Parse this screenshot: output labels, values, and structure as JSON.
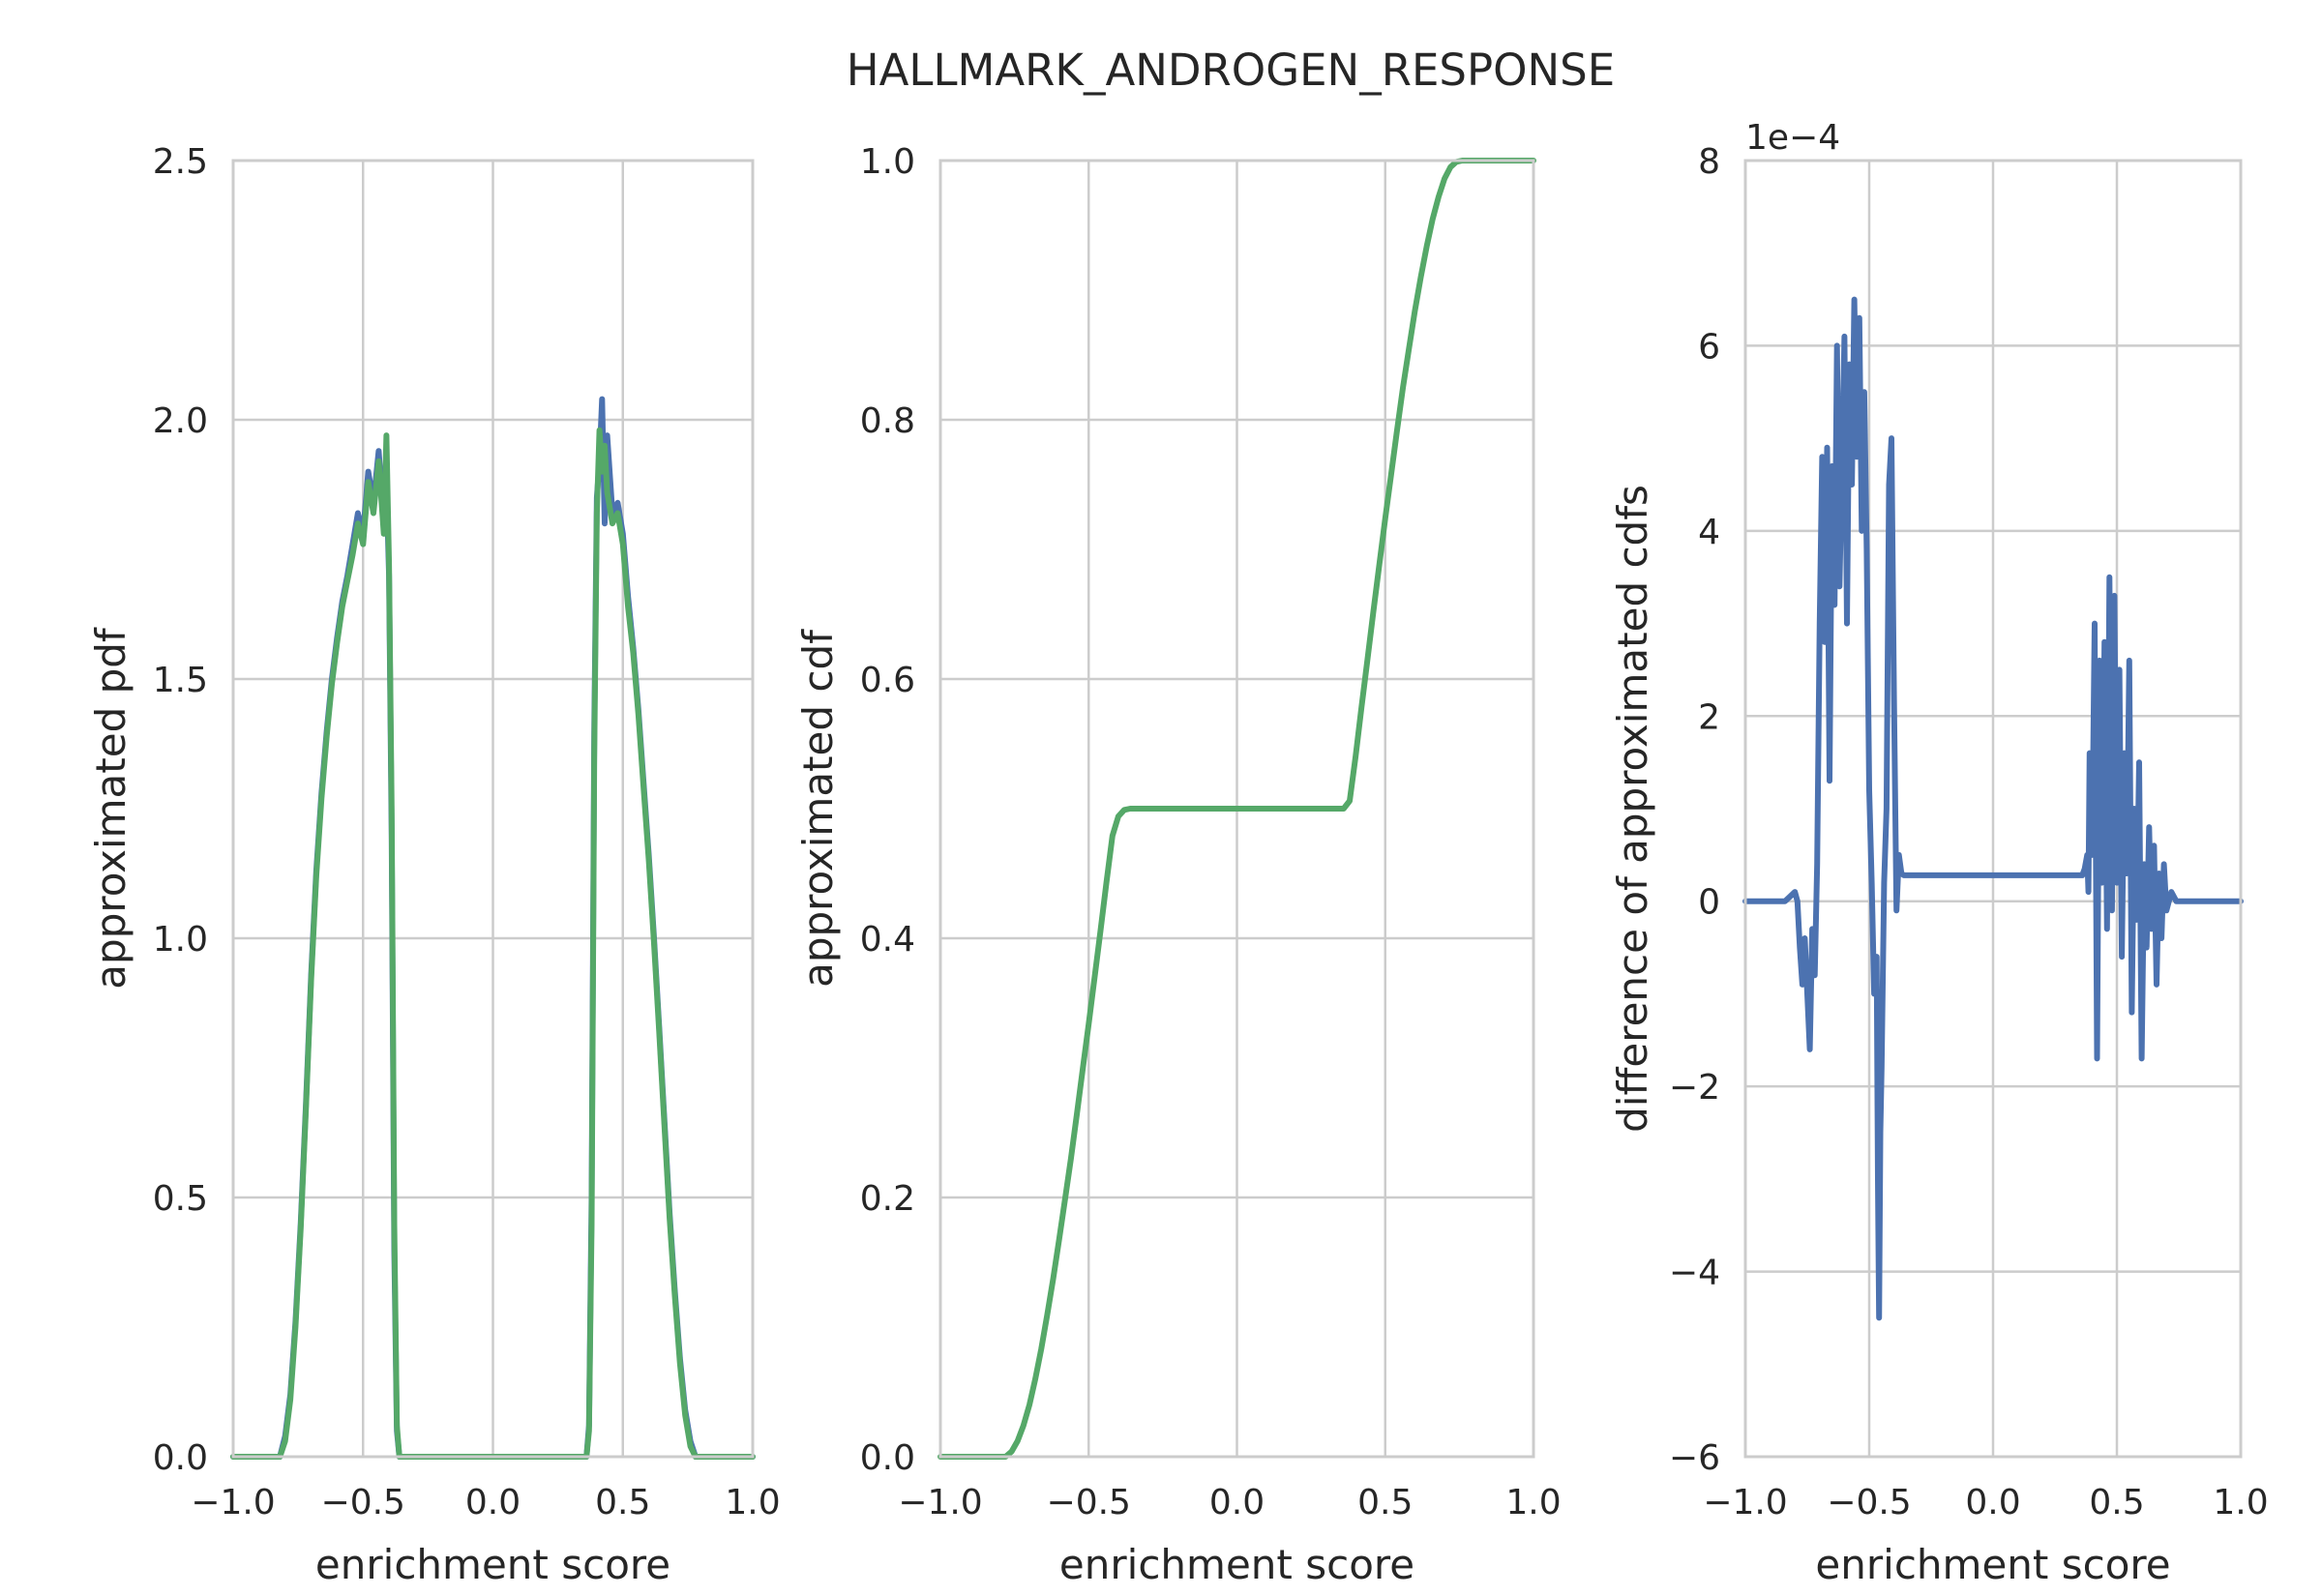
{
  "figure": {
    "title": "HALLMARK_ANDROGEN_RESPONSE"
  },
  "colors": {
    "blue": "#4C72B0",
    "green": "#55A868",
    "grid": "#CCCCCC",
    "text": "#262626"
  },
  "chart_data": [
    {
      "type": "line",
      "xlabel": "enrichment score",
      "ylabel": "approximated pdf",
      "xlim": [
        -1.0,
        1.0
      ],
      "ylim": [
        0.0,
        2.5
      ],
      "xticks": [
        "−1.0",
        "−0.5",
        "0.0",
        "0.5",
        "1.0"
      ],
      "yticks": [
        "0.0",
        "0.5",
        "1.0",
        "1.5",
        "2.0",
        "2.5"
      ],
      "grid": true,
      "series": [
        {
          "color": "#4C72B0",
          "x": [
            -1.0,
            -0.82,
            -0.8,
            -0.78,
            -0.76,
            -0.74,
            -0.72,
            -0.7,
            -0.68,
            -0.66,
            -0.64,
            -0.62,
            -0.6,
            -0.58,
            -0.56,
            -0.54,
            -0.52,
            -0.5,
            -0.48,
            -0.46,
            -0.44,
            -0.42,
            -0.41,
            -0.4,
            -0.39,
            -0.38,
            -0.37,
            -0.36,
            0.36,
            0.37,
            0.38,
            0.39,
            0.4,
            0.41,
            0.42,
            0.43,
            0.44,
            0.46,
            0.48,
            0.5,
            0.52,
            0.54,
            0.56,
            0.58,
            0.6,
            0.62,
            0.64,
            0.66,
            0.68,
            0.7,
            0.72,
            0.74,
            0.76,
            0.78,
            0.8,
            0.82,
            1.0
          ],
          "y": [
            0.0,
            0.0,
            0.04,
            0.12,
            0.26,
            0.45,
            0.68,
            0.93,
            1.13,
            1.28,
            1.4,
            1.5,
            1.58,
            1.65,
            1.7,
            1.76,
            1.82,
            1.78,
            1.9,
            1.84,
            1.94,
            1.8,
            1.88,
            1.7,
            1.2,
            0.4,
            0.05,
            0.0,
            0.0,
            0.06,
            0.5,
            1.4,
            1.85,
            1.92,
            2.04,
            1.8,
            1.97,
            1.82,
            1.84,
            1.78,
            1.66,
            1.56,
            1.44,
            1.3,
            1.16,
            1.0,
            0.83,
            0.65,
            0.47,
            0.32,
            0.19,
            0.09,
            0.03,
            0.0,
            0.0,
            0.0,
            0.0
          ]
        },
        {
          "color": "#55A868",
          "x": [
            -1.0,
            -0.82,
            -0.8,
            -0.78,
            -0.76,
            -0.74,
            -0.72,
            -0.7,
            -0.68,
            -0.66,
            -0.64,
            -0.62,
            -0.6,
            -0.58,
            -0.56,
            -0.54,
            -0.52,
            -0.5,
            -0.48,
            -0.46,
            -0.44,
            -0.42,
            -0.41,
            -0.4,
            -0.39,
            -0.38,
            -0.37,
            -0.36,
            0.36,
            0.37,
            0.38,
            0.39,
            0.4,
            0.41,
            0.42,
            0.43,
            0.44,
            0.46,
            0.48,
            0.5,
            0.52,
            0.54,
            0.56,
            0.58,
            0.6,
            0.62,
            0.64,
            0.66,
            0.68,
            0.7,
            0.72,
            0.74,
            0.76,
            0.78,
            0.8,
            0.82,
            1.0
          ],
          "y": [
            0.0,
            0.0,
            0.03,
            0.11,
            0.25,
            0.44,
            0.67,
            0.92,
            1.12,
            1.27,
            1.39,
            1.49,
            1.57,
            1.64,
            1.69,
            1.74,
            1.8,
            1.76,
            1.88,
            1.82,
            1.92,
            1.78,
            1.97,
            1.72,
            1.25,
            0.45,
            0.06,
            0.0,
            0.0,
            0.05,
            0.45,
            1.35,
            1.82,
            1.98,
            1.9,
            1.95,
            1.86,
            1.8,
            1.82,
            1.76,
            1.64,
            1.55,
            1.43,
            1.29,
            1.15,
            0.99,
            0.82,
            0.64,
            0.46,
            0.31,
            0.18,
            0.08,
            0.02,
            0.0,
            0.0,
            0.0,
            0.0
          ]
        }
      ]
    },
    {
      "type": "line",
      "xlabel": "enrichment score",
      "ylabel": "approximated cdf",
      "xlim": [
        -1.0,
        1.0
      ],
      "ylim": [
        0.0,
        1.0
      ],
      "xticks": [
        "−1.0",
        "−0.5",
        "0.0",
        "0.5",
        "1.0"
      ],
      "yticks": [
        "0.0",
        "0.2",
        "0.4",
        "0.6",
        "0.8",
        "1.0"
      ],
      "grid": true,
      "series": [
        {
          "color": "#55A868",
          "x": [
            -1.0,
            -0.78,
            -0.76,
            -0.74,
            -0.72,
            -0.7,
            -0.68,
            -0.66,
            -0.64,
            -0.62,
            -0.6,
            -0.58,
            -0.56,
            -0.54,
            -0.52,
            -0.5,
            -0.48,
            -0.46,
            -0.44,
            -0.42,
            -0.4,
            -0.38,
            -0.36,
            0.36,
            0.38,
            0.4,
            0.42,
            0.44,
            0.46,
            0.48,
            0.5,
            0.52,
            0.54,
            0.56,
            0.58,
            0.6,
            0.62,
            0.64,
            0.66,
            0.68,
            0.7,
            0.72,
            0.74,
            0.76,
            0.78,
            1.0
          ],
          "y": [
            0.0,
            0.0,
            0.004,
            0.012,
            0.024,
            0.04,
            0.06,
            0.083,
            0.109,
            0.137,
            0.167,
            0.198,
            0.23,
            0.264,
            0.299,
            0.334,
            0.37,
            0.406,
            0.443,
            0.479,
            0.494,
            0.499,
            0.5,
            0.5,
            0.506,
            0.54,
            0.578,
            0.615,
            0.652,
            0.688,
            0.724,
            0.758,
            0.792,
            0.825,
            0.855,
            0.884,
            0.91,
            0.934,
            0.955,
            0.972,
            0.986,
            0.995,
            0.999,
            1.0,
            1.0,
            1.0
          ]
        }
      ]
    },
    {
      "type": "line",
      "xlabel": "enrichment score",
      "ylabel": "difference of approximated cdfs",
      "xlim": [
        -1.0,
        1.0
      ],
      "ylim": [
        -6,
        8
      ],
      "y_scale_label": "1e−4",
      "xticks": [
        "−1.0",
        "−0.5",
        "0.0",
        "0.5",
        "1.0"
      ],
      "yticks": [
        "−6",
        "−4",
        "−2",
        "0",
        "2",
        "4",
        "6",
        "8"
      ],
      "grid": true,
      "series": [
        {
          "color": "#4C72B0",
          "x": [
            -1.0,
            -0.84,
            -0.82,
            -0.8,
            -0.79,
            -0.78,
            -0.77,
            -0.76,
            -0.75,
            -0.74,
            -0.73,
            -0.72,
            -0.71,
            -0.7,
            -0.69,
            -0.68,
            -0.67,
            -0.66,
            -0.65,
            -0.64,
            -0.63,
            -0.62,
            -0.61,
            -0.6,
            -0.59,
            -0.58,
            -0.57,
            -0.56,
            -0.55,
            -0.54,
            -0.53,
            -0.52,
            -0.51,
            -0.5,
            -0.49,
            -0.48,
            -0.47,
            -0.465,
            -0.46,
            -0.455,
            -0.45,
            -0.44,
            -0.43,
            -0.42,
            -0.41,
            -0.4,
            -0.39,
            -0.38,
            -0.37,
            -0.36,
            0.36,
            0.37,
            0.38,
            0.385,
            0.39,
            0.4,
            0.41,
            0.42,
            0.43,
            0.44,
            0.45,
            0.46,
            0.47,
            0.48,
            0.49,
            0.5,
            0.51,
            0.52,
            0.53,
            0.54,
            0.55,
            0.56,
            0.57,
            0.58,
            0.59,
            0.6,
            0.61,
            0.62,
            0.63,
            0.64,
            0.65,
            0.66,
            0.67,
            0.68,
            0.69,
            0.7,
            0.72,
            0.74,
            0.76,
            0.78,
            0.8,
            1.0
          ],
          "y": [
            0.0,
            0.0,
            0.05,
            0.1,
            0.0,
            -0.5,
            -0.9,
            -0.4,
            -1.0,
            -1.6,
            -0.3,
            -0.8,
            0.4,
            3.0,
            4.8,
            2.8,
            4.9,
            1.3,
            4.7,
            3.2,
            6.0,
            3.4,
            4.7,
            6.1,
            3.0,
            5.8,
            4.5,
            6.5,
            4.8,
            6.3,
            4.0,
            5.5,
            3.8,
            1.2,
            0.2,
            -1.0,
            -0.6,
            -3.0,
            -4.5,
            -2.5,
            -1.8,
            0.2,
            1.0,
            4.5,
            5.0,
            2.2,
            -0.1,
            0.5,
            0.3,
            0.28,
            0.28,
            0.35,
            0.5,
            0.1,
            1.6,
            0.5,
            3.0,
            -1.7,
            2.6,
            0.2,
            2.8,
            -0.3,
            3.5,
            -0.1,
            3.3,
            0.2,
            2.5,
            -0.6,
            1.6,
            0.3,
            2.6,
            -1.2,
            1.0,
            -0.2,
            1.5,
            -1.7,
            0.4,
            -0.5,
            0.8,
            -0.3,
            0.6,
            -0.9,
            0.3,
            -0.4,
            0.4,
            -0.1,
            0.1,
            0.0,
            0.0,
            0.0,
            0.0,
            0.0
          ]
        }
      ]
    }
  ]
}
